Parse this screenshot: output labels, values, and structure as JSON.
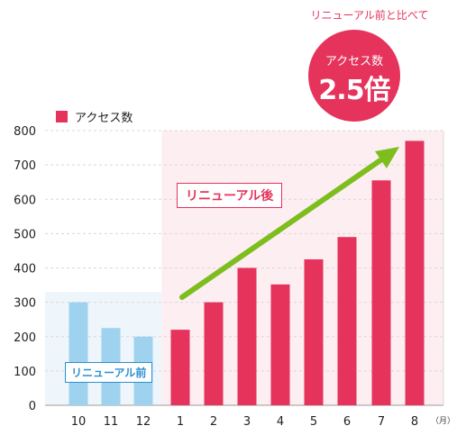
{
  "header": {
    "compare_caption": "リニューアル前と比べて",
    "badge_label": "アクセス数",
    "badge_value": "2.5倍"
  },
  "annotations": {
    "before_label": "リニューアル前",
    "after_label": "リニューアル後",
    "month_unit": "（月）"
  },
  "colors": {
    "accent": "#e5335c",
    "before_bar": "#9fd2ee",
    "before_region": "#eef6fc",
    "after_region": "#fdeef2",
    "arrow": "#7dbe1e",
    "before_label_border": "#2a90d0"
  },
  "chart_data": {
    "type": "bar",
    "categories": [
      "10",
      "11",
      "12",
      "1",
      "2",
      "3",
      "4",
      "5",
      "6",
      "7",
      "8"
    ],
    "series": [
      {
        "name": "アクセス数",
        "values": [
          300,
          225,
          200,
          220,
          300,
          400,
          352,
          425,
          490,
          655,
          770
        ]
      }
    ],
    "ylim": [
      0,
      800
    ],
    "yticks": [
      0,
      100,
      200,
      300,
      400,
      500,
      600,
      700,
      800
    ],
    "grid": true,
    "legend": "top-left",
    "before_count": 3
  }
}
